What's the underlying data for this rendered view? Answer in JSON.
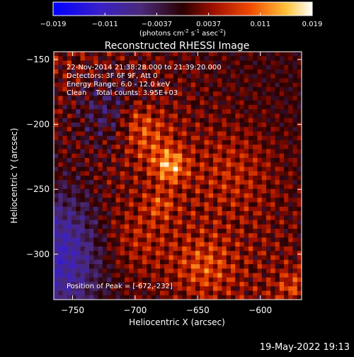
{
  "colorbar": {
    "ticks": [
      "-0.019",
      "-0.011",
      "-0.0037",
      "0.0037",
      "0.011",
      "0.019"
    ],
    "units_main": "(photons cm",
    "units_exp1": "-2",
    "units_mid": " s",
    "units_exp2": "-1",
    "units_end": " asec",
    "units_exp3": "-2",
    "units_close": ")"
  },
  "chart_data": {
    "type": "heatmap",
    "title": "Reconstructed RHESSI Image",
    "xlabel": "Heliocentric X (arcsec)",
    "ylabel": "Heliocentric Y (arcsec)",
    "xlim": [
      -765,
      -567
    ],
    "ylim": [
      -335,
      -144
    ],
    "xticks": [
      -750,
      -700,
      -650,
      -600
    ],
    "xtick_labels": [
      "−750",
      "−700",
      "−650",
      "−600"
    ],
    "yticks": [
      -150,
      -200,
      -250,
      -300
    ],
    "ytick_labels": [
      "−150",
      "−200",
      "−250",
      "−300"
    ],
    "value_range": [
      -0.019,
      0.019
    ],
    "colormap": "red-temperature",
    "peak": {
      "x": -672,
      "y": -232
    },
    "annotations": [
      "22-Nov-2014 21:38:28.000 to 21:39:20.000",
      "Detectors: 3F 6F 9F, Att 0",
      "Energy Range: 6.0 - 12.0 keV",
      "Clean    Total counts: 3.95E+03"
    ],
    "peak_label": "Position of Peak = [-672,-232]"
  },
  "footer": {
    "timestamp": "19-May-2022 19:13"
  }
}
